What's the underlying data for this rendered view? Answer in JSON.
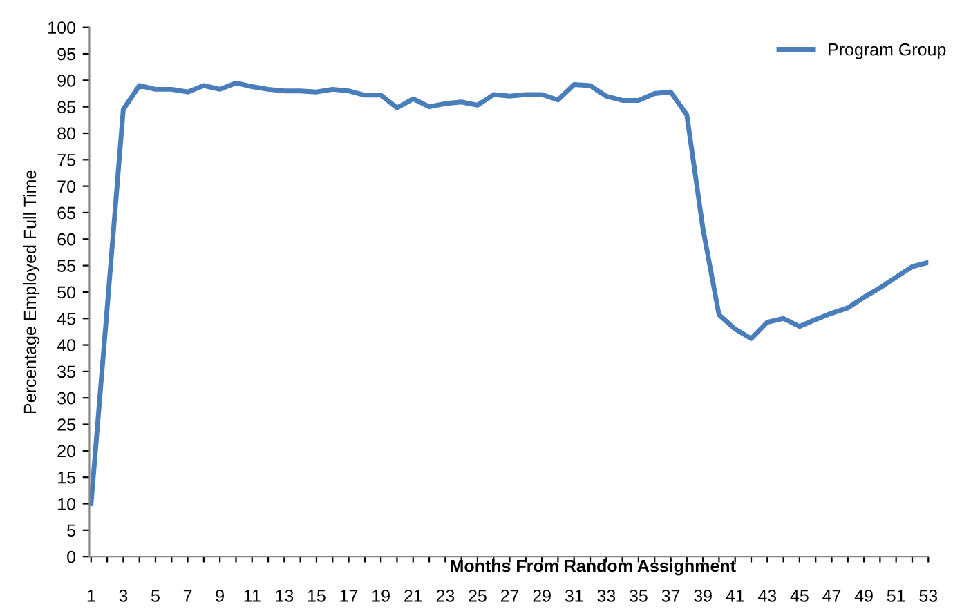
{
  "chart_data": {
    "type": "line",
    "xlabel": "Months From Random Assignment",
    "ylabel": "Percentage Employed Full Time",
    "categories": [
      "1",
      null,
      "3",
      null,
      "5",
      null,
      "7",
      null,
      "9",
      null,
      "11",
      null,
      "13",
      null,
      "15",
      null,
      "17",
      null,
      "19",
      null,
      "21",
      null,
      "23",
      null,
      "25",
      null,
      "27",
      null,
      "29",
      null,
      "31",
      null,
      "33",
      null,
      "35",
      null,
      "37",
      null,
      "39",
      null,
      "41",
      null,
      "43",
      null,
      "45",
      null,
      "47",
      null,
      "49",
      null,
      "51",
      null,
      "53"
    ],
    "series": [
      {
        "name": "Program Group",
        "color": "#4a7ebb",
        "values": [
          10,
          47,
          84.5,
          89,
          88.3,
          88.3,
          87.8,
          89,
          88.3,
          89.5,
          88.8,
          88.3,
          88,
          88,
          87.8,
          88.3,
          88,
          87.2,
          87.2,
          84.8,
          86.5,
          85,
          85.6,
          85.9,
          85.3,
          87.3,
          87,
          87.3,
          87.3,
          86.3,
          89.2,
          89,
          87,
          86.2,
          86.2,
          87.5,
          87.8,
          83.5,
          62,
          45.7,
          43,
          41.2,
          44.3,
          45,
          43.5,
          44.8,
          46,
          47,
          49,
          50.8,
          52.8,
          54.8,
          55.6
        ]
      }
    ],
    "ylim": [
      0,
      100
    ],
    "yticks": [
      0,
      5,
      10,
      15,
      20,
      25,
      30,
      35,
      40,
      45,
      50,
      55,
      60,
      65,
      70,
      75,
      80,
      85,
      90,
      95,
      100
    ],
    "grid": false,
    "legend": "top right",
    "marker": "none",
    "line_style": "solid"
  }
}
